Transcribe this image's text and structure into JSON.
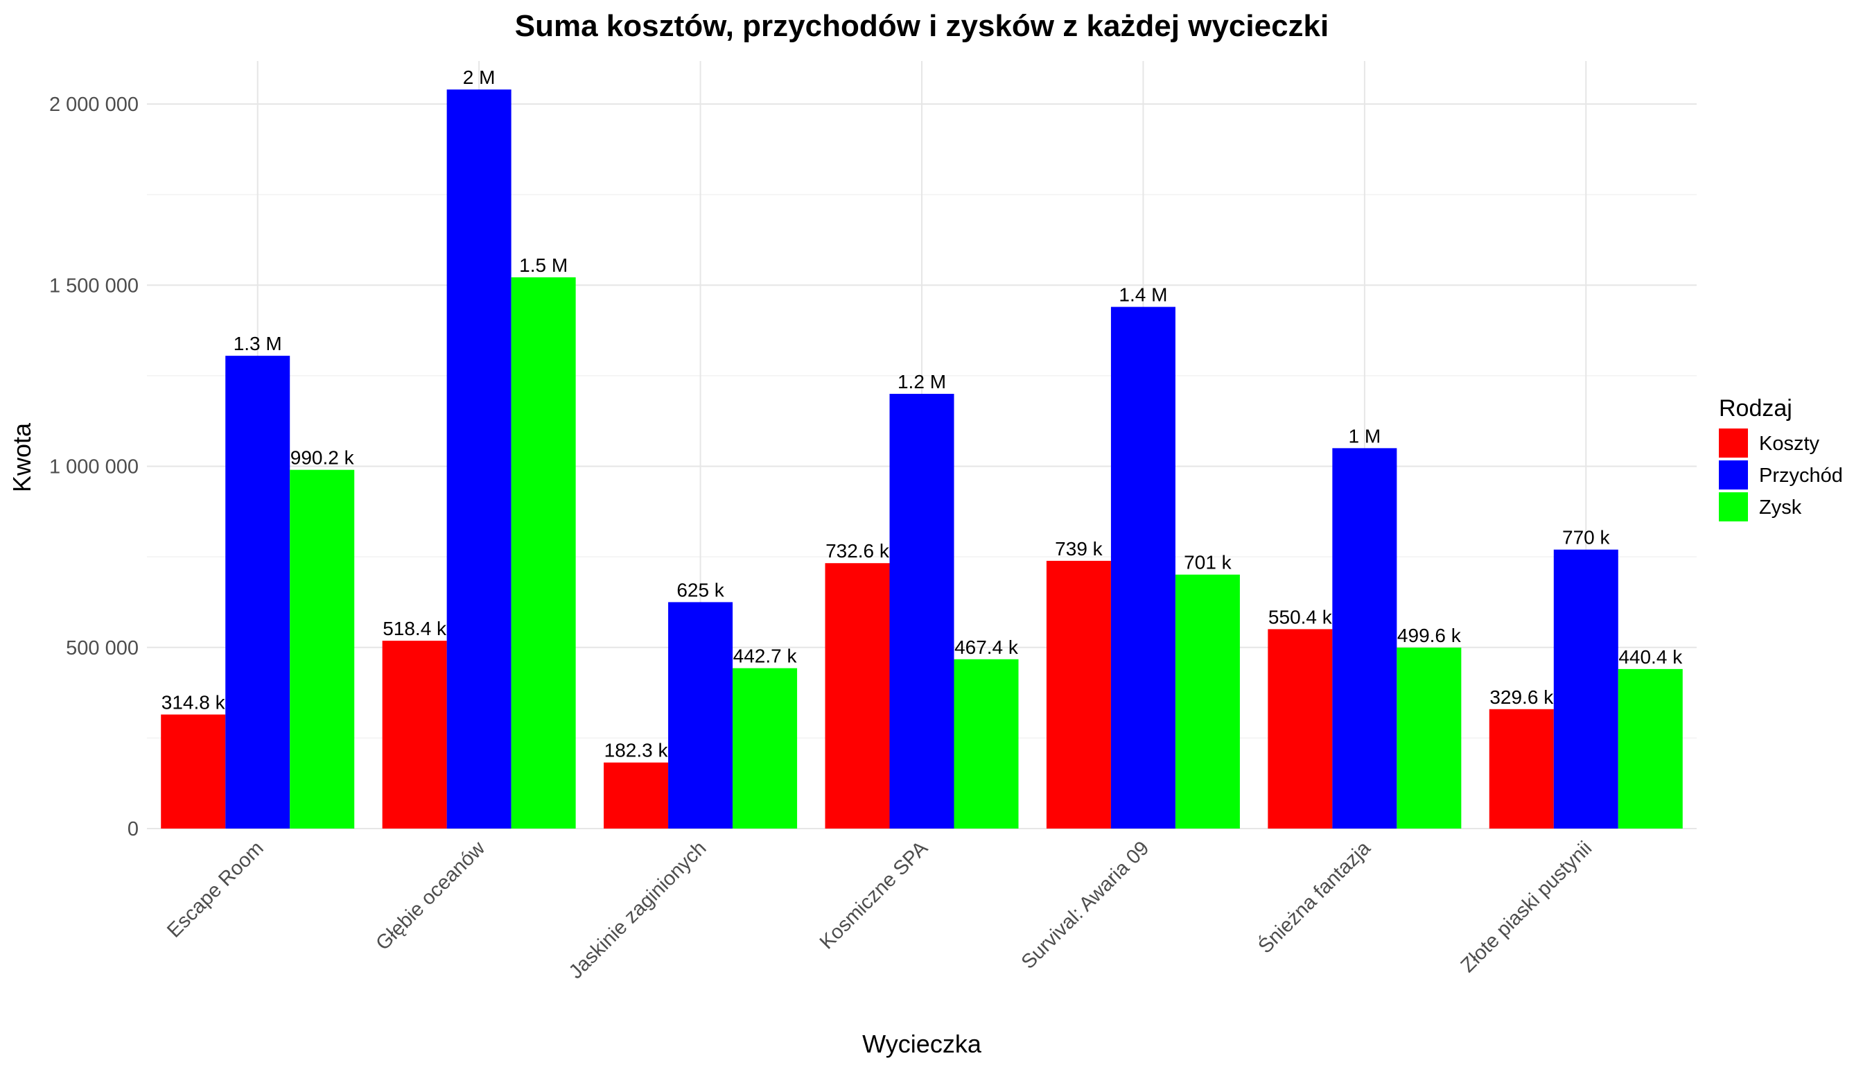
{
  "chart_data": {
    "type": "bar",
    "title": "Suma kosztów, przychodów i zysków z każdej wycieczki",
    "xlabel": "Wycieczka",
    "ylabel": "Kwota",
    "ylim": [
      0,
      2100000
    ],
    "yticks": [
      0,
      500000,
      1000000,
      1500000,
      2000000
    ],
    "ytick_labels": [
      "0",
      "500 000",
      "1 000 000",
      "1 500 000",
      "2 000 000"
    ],
    "grid": true,
    "legend_position": "right",
    "legend_title": "Rodzaj",
    "categories": [
      "Escape Room",
      "Głębie oceanów",
      "Jaskinie zaginionych",
      "Kosmiczne SPA",
      "Survival: Awaria 09",
      "Śnieżna fantazja",
      "Złote piaski pustynii"
    ],
    "series": [
      {
        "name": "Koszty",
        "color": "#ff0000",
        "values": [
          314800,
          518400,
          182300,
          732600,
          739000,
          550400,
          329600
        ],
        "labels": [
          "314.8 k",
          "518.4 k",
          "182.3 k",
          "732.6 k",
          "739 k",
          "550.4 k",
          "329.6 k"
        ]
      },
      {
        "name": "Przychód",
        "color": "#0000ff",
        "values": [
          1305000,
          2040000,
          625000,
          1200000,
          1440000,
          1050000,
          770000
        ],
        "labels": [
          "1.3 M",
          "2 M",
          "625 k",
          "1.2 M",
          "1.4 M",
          "1 M",
          "770 k"
        ]
      },
      {
        "name": "Zysk",
        "color": "#00ff00",
        "values": [
          990200,
          1521600,
          442700,
          467400,
          701000,
          499600,
          440400
        ],
        "labels": [
          "990.2 k",
          "1.5 M",
          "442.7 k",
          "467.4 k",
          "701 k",
          "499.6 k",
          "440.4 k"
        ]
      }
    ]
  }
}
